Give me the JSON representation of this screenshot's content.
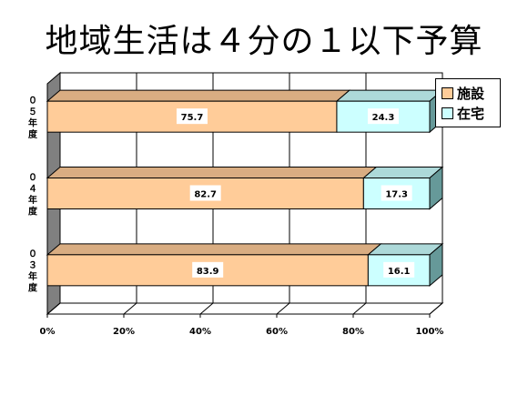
{
  "page": {
    "title": "地域生活は４分の１以下予算"
  },
  "legend": {
    "items": [
      {
        "label": "施設",
        "color": "#FFCC99"
      },
      {
        "label": "在宅",
        "color": "#CCFFFF"
      }
    ]
  },
  "chart_data": {
    "type": "bar",
    "orientation": "horizontal",
    "stacked": "percent",
    "title": "地域生活は４分の１以下予算",
    "categories": [
      "０５年度",
      "０４年度",
      "０３年度"
    ],
    "series": [
      {
        "name": "施設",
        "values": [
          75.7,
          82.7,
          83.9
        ],
        "color": "#FFCC99"
      },
      {
        "name": "在宅",
        "values": [
          24.3,
          17.3,
          16.1
        ],
        "color": "#CCFFFF"
      }
    ],
    "x_ticks": [
      "0%",
      "20%",
      "40%",
      "60%",
      "80%",
      "100%"
    ],
    "xlim": [
      0,
      100
    ],
    "grid": true,
    "legend_position": "top-right",
    "three_d": true
  }
}
